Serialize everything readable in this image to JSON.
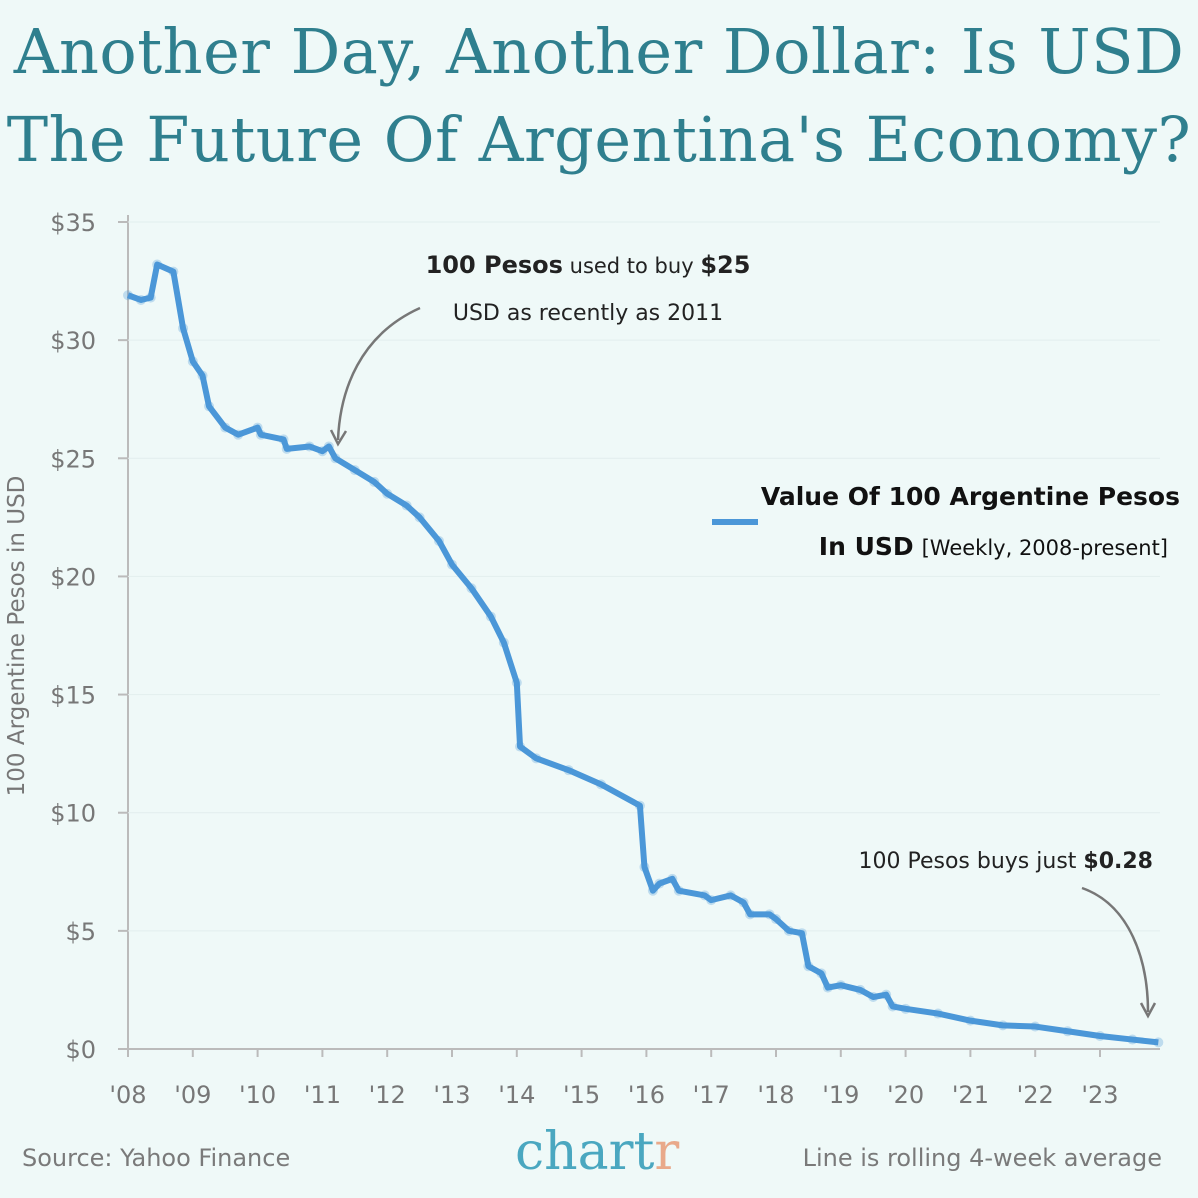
{
  "title_lines": [
    "Another Day, Another Dollar: Is USD",
    "The Future Of Argentina's Economy?"
  ],
  "colors": {
    "background": "#eff9f8",
    "title": "#2f7f8e",
    "line": "#4b97d8",
    "annotation_arrow": "#777777"
  },
  "chart_data": {
    "type": "line",
    "title": "Another Day, Another Dollar: Is USD The Future Of Argentina's Economy?",
    "ylabel": "100 Argentine Pesos in USD",
    "xlabel": "",
    "ylim": [
      0,
      35
    ],
    "xlim": [
      2008,
      2024
    ],
    "y_ticks": [
      0,
      5,
      10,
      15,
      20,
      25,
      30,
      35
    ],
    "y_tick_labels": [
      "$0",
      "$5",
      "$10",
      "$15",
      "$20",
      "$25",
      "$30",
      "$35"
    ],
    "x_ticks": [
      2008,
      2009,
      2010,
      2011,
      2012,
      2013,
      2014,
      2015,
      2016,
      2017,
      2018,
      2019,
      2020,
      2021,
      2022,
      2023
    ],
    "x_tick_labels": [
      "'08",
      "'09",
      "'10",
      "'11",
      "'12",
      "'13",
      "'14",
      "'15",
      "'16",
      "'17",
      "'18",
      "'19",
      "'20",
      "'21",
      "'22",
      "'23"
    ],
    "grid": "horizontal",
    "legend": {
      "placement": "right",
      "label_bold": "Value Of 100 Argentine Pesos",
      "label_bold2": "In USD",
      "label_light": "[Weekly, 2008-present]"
    },
    "series": [
      {
        "name": "Value Of 100 Argentine Pesos In USD",
        "x": [
          2008.0,
          2008.2,
          2008.35,
          2008.45,
          2008.7,
          2008.85,
          2009.0,
          2009.15,
          2009.25,
          2009.5,
          2009.7,
          2010.0,
          2010.05,
          2010.4,
          2010.45,
          2010.8,
          2011.0,
          2011.1,
          2011.2,
          2011.5,
          2011.8,
          2012.0,
          2012.3,
          2012.5,
          2012.8,
          2013.0,
          2013.3,
          2013.6,
          2013.8,
          2014.0,
          2014.05,
          2014.3,
          2014.8,
          2015.3,
          2015.9,
          2015.97,
          2016.1,
          2016.2,
          2016.4,
          2016.5,
          2016.9,
          2017.0,
          2017.3,
          2017.5,
          2017.6,
          2017.9,
          2018.0,
          2018.2,
          2018.4,
          2018.5,
          2018.7,
          2018.8,
          2019.0,
          2019.3,
          2019.5,
          2019.7,
          2019.8,
          2020.0,
          2020.5,
          2021.0,
          2021.5,
          2022.0,
          2022.5,
          2023.0,
          2023.5,
          2023.9
        ],
        "y": [
          31.9,
          31.7,
          31.8,
          33.2,
          32.9,
          30.5,
          29.1,
          28.5,
          27.2,
          26.3,
          26.0,
          26.3,
          26.0,
          25.8,
          25.4,
          25.5,
          25.3,
          25.5,
          25.0,
          24.5,
          24.0,
          23.5,
          23.0,
          22.5,
          21.5,
          20.5,
          19.5,
          18.3,
          17.2,
          15.5,
          12.8,
          12.3,
          11.8,
          11.2,
          10.3,
          7.7,
          6.7,
          7.0,
          7.2,
          6.7,
          6.5,
          6.3,
          6.5,
          6.2,
          5.7,
          5.7,
          5.5,
          5.0,
          4.9,
          3.5,
          3.2,
          2.6,
          2.7,
          2.5,
          2.2,
          2.3,
          1.8,
          1.7,
          1.5,
          1.2,
          1.0,
          0.95,
          0.75,
          0.55,
          0.4,
          0.28
        ]
      }
    ],
    "annotations": [
      {
        "line1_bold": "100 Pesos",
        "line1_rest": " used to buy ",
        "line1_bold2": "$25",
        "line2": "USD as recently as 2011"
      },
      {
        "text": "100 Pesos buys just ",
        "bold": "$0.28"
      }
    ]
  },
  "footer": {
    "source": "Source: Yahoo Finance",
    "logo_main": "chart",
    "logo_accent": "r",
    "note": "Line is rolling 4-week average"
  }
}
